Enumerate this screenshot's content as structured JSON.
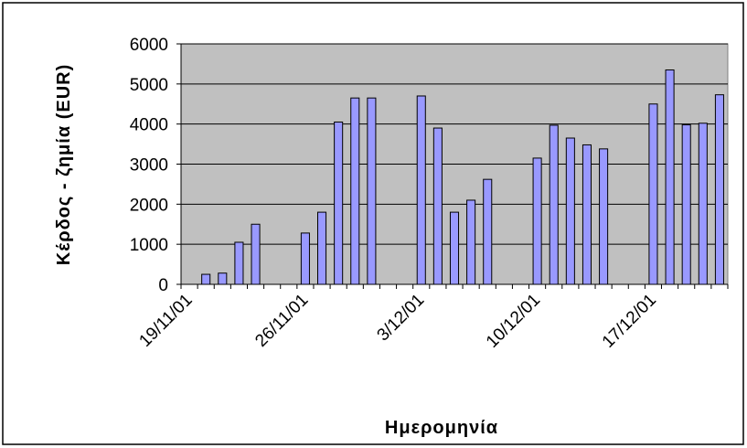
{
  "chart_data": {
    "type": "bar",
    "x_label": "Ημερομηνία",
    "y_label": "Κέρδος - ζημία (EUR)",
    "categories": [
      "19/11/01",
      null,
      null,
      null,
      null,
      null,
      null,
      "26/11/01",
      null,
      null,
      null,
      null,
      null,
      null,
      "3/12/01",
      null,
      null,
      null,
      null,
      null,
      null,
      "10/12/01",
      null,
      null,
      null,
      null,
      null,
      null,
      "17/12/01",
      null,
      null,
      null,
      null
    ],
    "values": [
      null,
      250,
      280,
      1050,
      1500,
      null,
      null,
      1280,
      1800,
      4050,
      4650,
      4650,
      null,
      null,
      4700,
      3900,
      1800,
      2100,
      2620,
      null,
      null,
      3150,
      3970,
      3650,
      3480,
      3380,
      null,
      null,
      4500,
      5350,
      3980,
      4020,
      4730
    ],
    "color": "#9999ff",
    "ylim": [
      0,
      6000
    ],
    "yticks": [
      0,
      1000,
      2000,
      3000,
      4000,
      5000,
      6000
    ],
    "grid": true,
    "plot_background": "#c0c0c0"
  }
}
